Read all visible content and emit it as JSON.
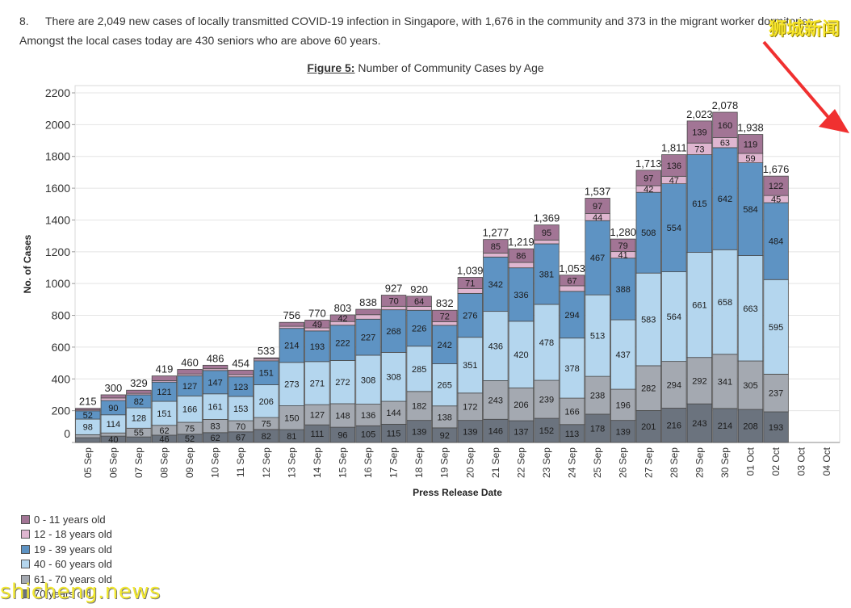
{
  "article": {
    "number": "8.",
    "text": "There are 2,049 new cases of locally transmitted COVID-19 infection in Singapore, with 1,676 in the community and 373 in the migrant worker dormitories. Amongst the local cases today are 430 seniors who are above 60 years."
  },
  "figure": {
    "label": "Figure 5:",
    "caption": "Number of Community Cases by Age"
  },
  "watermarks": {
    "top": "狮城新闻",
    "bottom": "shicheng.news"
  },
  "colors": {
    "age_0_11": "#a27595",
    "age_12_18": "#dfb6d0",
    "age_19_39": "#5e93c3",
    "age_40_60": "#b4d6ee",
    "age_61_70": "#a4a9b1",
    "age_70_plus": "#6b737e",
    "arrow": "#f03030"
  },
  "chart_data": {
    "type": "bar",
    "stacked": true,
    "xlabel": "Press Release Date",
    "ylabel": "No. of Cases",
    "ylim": [
      0,
      2200
    ],
    "yticks": [
      0,
      200,
      400,
      600,
      800,
      1000,
      1200,
      1400,
      1600,
      1800,
      2000,
      2200
    ],
    "grid": true,
    "legend_position": "bottom-left",
    "categories": [
      "05 Sep",
      "06 Sep",
      "07 Sep",
      "08 Sep",
      "09 Sep",
      "10 Sep",
      "11 Sep",
      "12 Sep",
      "13 Sep",
      "14 Sep",
      "15 Sep",
      "16 Sep",
      "17 Sep",
      "18 Sep",
      "19 Sep",
      "20 Sep",
      "21 Sep",
      "22 Sep",
      "23 Sep",
      "24 Sep",
      "25 Sep",
      "26 Sep",
      "27 Sep",
      "28 Sep",
      "29 Sep",
      "30 Sep",
      "01 Oct",
      "02 Oct",
      "03 Oct",
      "04 Oct"
    ],
    "totals": [
      "215",
      "300",
      "329",
      "419",
      "460",
      "486",
      "454",
      "533",
      "756",
      "770",
      "803",
      "838",
      "927",
      "920",
      "832",
      "1,039",
      "1,277",
      "1,219",
      "1,369",
      "1,053",
      "1,537",
      "1,280",
      "1,713",
      "1,811",
      "2,023",
      "2,078",
      "1,938",
      "1,676",
      null,
      null
    ],
    "series": [
      {
        "name": "70 years old",
        "key": "age_70_plus",
        "values": [
          30,
          40,
          35,
          46,
          52,
          62,
          67,
          82,
          81,
          111,
          96,
          105,
          115,
          139,
          92,
          139,
          146,
          137,
          152,
          113,
          178,
          139,
          201,
          216,
          243,
          214,
          208,
          193,
          null,
          null
        ]
      },
      {
        "name": "61 - 70 years old",
        "key": "age_61_70",
        "values": [
          19,
          20,
          55,
          62,
          75,
          83,
          70,
          75,
          150,
          127,
          148,
          136,
          144,
          182,
          138,
          172,
          243,
          206,
          239,
          166,
          238,
          196,
          282,
          294,
          292,
          341,
          305,
          237,
          null,
          null
        ]
      },
      {
        "name": "40 - 60 years old",
        "key": "age_40_60",
        "values": [
          98,
          114,
          128,
          151,
          166,
          161,
          153,
          206,
          273,
          271,
          272,
          308,
          308,
          285,
          265,
          351,
          436,
          420,
          478,
          378,
          513,
          437,
          583,
          564,
          661,
          658,
          663,
          595,
          null,
          null
        ]
      },
      {
        "name": "19 - 39 years old",
        "key": "age_19_39",
        "values": [
          52,
          90,
          82,
          121,
          127,
          147,
          123,
          151,
          214,
          193,
          222,
          227,
          268,
          226,
          242,
          276,
          342,
          336,
          381,
          294,
          467,
          388,
          508,
          554,
          615,
          642,
          584,
          484,
          null,
          null
        ]
      },
      {
        "name": "12 - 18 years old",
        "key": "age_12_18",
        "values": [
          6,
          16,
          9,
          9,
          11,
          11,
          14,
          11,
          13,
          19,
          23,
          28,
          22,
          24,
          23,
          30,
          25,
          34,
          24,
          35,
          44,
          41,
          42,
          47,
          73,
          63,
          59,
          45,
          null,
          null
        ]
      },
      {
        "name": "0 - 11 years old",
        "key": "age_0_11",
        "values": [
          10,
          20,
          20,
          30,
          29,
          22,
          28,
          8,
          25,
          49,
          42,
          34,
          70,
          64,
          72,
          71,
          85,
          86,
          95,
          67,
          97,
          79,
          97,
          136,
          139,
          160,
          119,
          122,
          null,
          null
        ]
      }
    ],
    "legend": [
      {
        "label": "0 - 11 years old",
        "key": "age_0_11"
      },
      {
        "label": "12 - 18 years old",
        "key": "age_12_18"
      },
      {
        "label": "19 - 39 years old",
        "key": "age_19_39"
      },
      {
        "label": "40 - 60 years old",
        "key": "age_40_60"
      },
      {
        "label": "61 - 70 years old",
        "key": "age_61_70"
      },
      {
        "label": "70 years old",
        "key": "age_70_plus"
      }
    ]
  }
}
